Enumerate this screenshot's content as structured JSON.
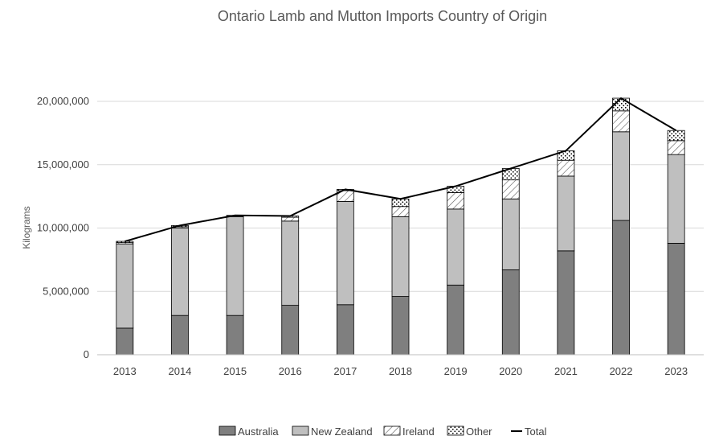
{
  "chart_data": {
    "type": "bar",
    "stacked": true,
    "title": "Ontario Lamb and Mutton Imports Country of Origin",
    "ylabel": "Kilograms",
    "xlabel": "",
    "ylim": [
      0,
      20000000
    ],
    "yticks": [
      0,
      5000000,
      10000000,
      15000000,
      20000000
    ],
    "ytick_labels": [
      "0",
      "5,000,000",
      "10,000,000",
      "15,000,000",
      "20,000,000"
    ],
    "grid": true,
    "legend_position": "bottom",
    "categories": [
      "2013",
      "2014",
      "2015",
      "2016",
      "2017",
      "2018",
      "2019",
      "2020",
      "2021",
      "2022",
      "2023"
    ],
    "series": [
      {
        "name": "Australia",
        "kind": "bar",
        "pattern": "solid-dark",
        "color": "#7f7f7f",
        "values": [
          2100000,
          3100000,
          3100000,
          3900000,
          3950000,
          4600000,
          5500000,
          6700000,
          8200000,
          10600000,
          8800000
        ]
      },
      {
        "name": "New Zealand",
        "kind": "bar",
        "pattern": "solid-light",
        "color": "#bfbfbf",
        "values": [
          6650000,
          6900000,
          7800000,
          6650000,
          8150000,
          6300000,
          6000000,
          5600000,
          5900000,
          7000000,
          7000000
        ]
      },
      {
        "name": "Ireland",
        "kind": "bar",
        "pattern": "diagonal-hatch",
        "color": "#ffffff",
        "values": [
          100000,
          100000,
          50000,
          300000,
          850000,
          800000,
          1300000,
          1500000,
          1250000,
          1650000,
          1100000
        ]
      },
      {
        "name": "Other",
        "kind": "bar",
        "pattern": "dots",
        "color": "#ffffff",
        "values": [
          100000,
          100000,
          50000,
          100000,
          100000,
          600000,
          500000,
          900000,
          750000,
          1000000,
          800000
        ]
      },
      {
        "name": "Total",
        "kind": "line",
        "color": "#000000",
        "values": [
          8950000,
          10200000,
          11000000,
          10950000,
          13050000,
          12300000,
          13300000,
          14700000,
          16100000,
          20250000,
          17700000
        ]
      }
    ]
  }
}
